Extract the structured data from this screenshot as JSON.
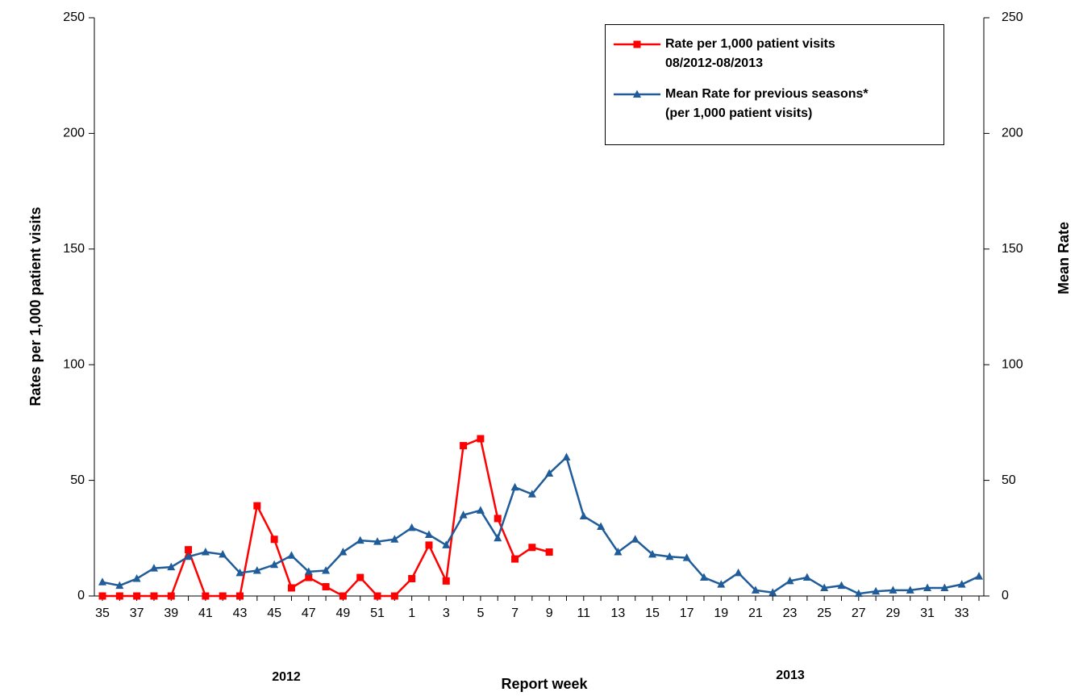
{
  "chart_data": {
    "type": "line",
    "x_label": "Report week",
    "y_label": "Rates per 1,000 patient visits",
    "y2_label": "Mean Rate",
    "year_labels": [
      "2012",
      "2013"
    ],
    "categories": [
      "35",
      null,
      "37",
      null,
      "39",
      null,
      "41",
      null,
      "43",
      null,
      "45",
      null,
      "47",
      null,
      "49",
      null,
      "51",
      null,
      "1",
      null,
      "3",
      null,
      "5",
      null,
      "7",
      null,
      "9",
      null,
      "11",
      null,
      "13",
      null,
      "15",
      null,
      "17",
      null,
      "19",
      null,
      "21",
      null,
      "23",
      null,
      "25",
      null,
      "27",
      null,
      "29",
      null,
      "31",
      null,
      "33",
      null
    ],
    "series": [
      {
        "name": "Rate per 1,000 patient visits\n08/2012-08/2013",
        "color": "#ff0000",
        "marker": "square",
        "values": [
          0,
          0,
          0,
          0,
          0,
          20,
          0,
          0,
          0,
          39,
          24.5,
          3.5,
          8,
          4,
          0,
          8,
          0,
          0,
          7.5,
          22,
          6.5,
          65,
          68,
          33.5,
          16,
          21,
          19,
          null,
          null,
          null,
          null,
          null,
          null,
          null,
          null,
          null,
          null,
          null,
          null,
          null,
          null,
          null,
          null,
          null,
          null,
          null,
          null,
          null,
          null,
          null,
          null,
          null
        ]
      },
      {
        "name": "Mean Rate for previous seasons*\n(per 1,000 patient visits)",
        "color": "#1f5c99",
        "marker": "triangle",
        "axis": "y2",
        "values": [
          6,
          4.5,
          7.5,
          12,
          12.5,
          17,
          19,
          18,
          10,
          11,
          13.5,
          17.5,
          10.5,
          11,
          19,
          24,
          23.5,
          24.5,
          29.5,
          26.5,
          22,
          35,
          37,
          25,
          47,
          44,
          53,
          60,
          34.5,
          30,
          19,
          24.5,
          18,
          17,
          16.5,
          8,
          5,
          10,
          2.5,
          1.5,
          6.5,
          8,
          3.5,
          4.5,
          1,
          2,
          2.5,
          2.5,
          3.5,
          3.5,
          5,
          8.5
        ]
      }
    ],
    "ylim": [
      0,
      250
    ],
    "yticks": [
      0,
      50,
      100,
      150,
      200,
      250
    ],
    "y2lim": [
      0,
      250
    ],
    "y2ticks": [
      0,
      50,
      100,
      150,
      200,
      250
    ]
  }
}
